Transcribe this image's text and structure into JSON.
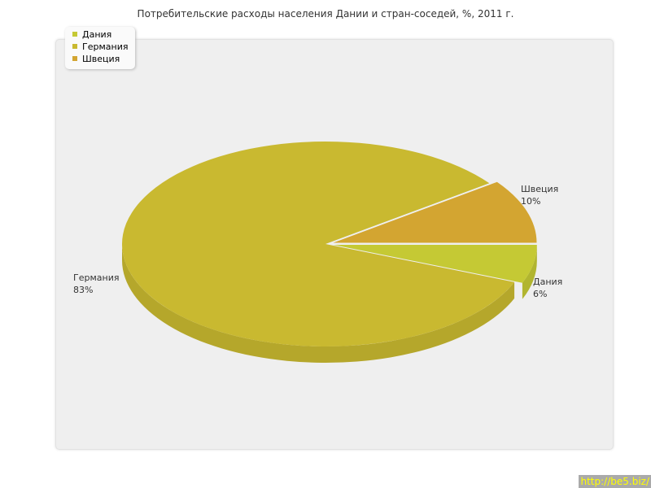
{
  "chart_data": {
    "type": "pie",
    "title": "Потребительские расходы населения Дании и стран-соседей, %, 2011 г.",
    "categories": [
      "Дания",
      "Германия",
      "Швеция"
    ],
    "values": [
      6,
      83,
      10
    ],
    "value_labels": [
      "6%",
      "83%",
      "10%"
    ],
    "colors": [
      "#c5c934",
      "#c9b930",
      "#d3a531"
    ],
    "legend_position": "top-left"
  },
  "watermark": "http://be5.biz/"
}
